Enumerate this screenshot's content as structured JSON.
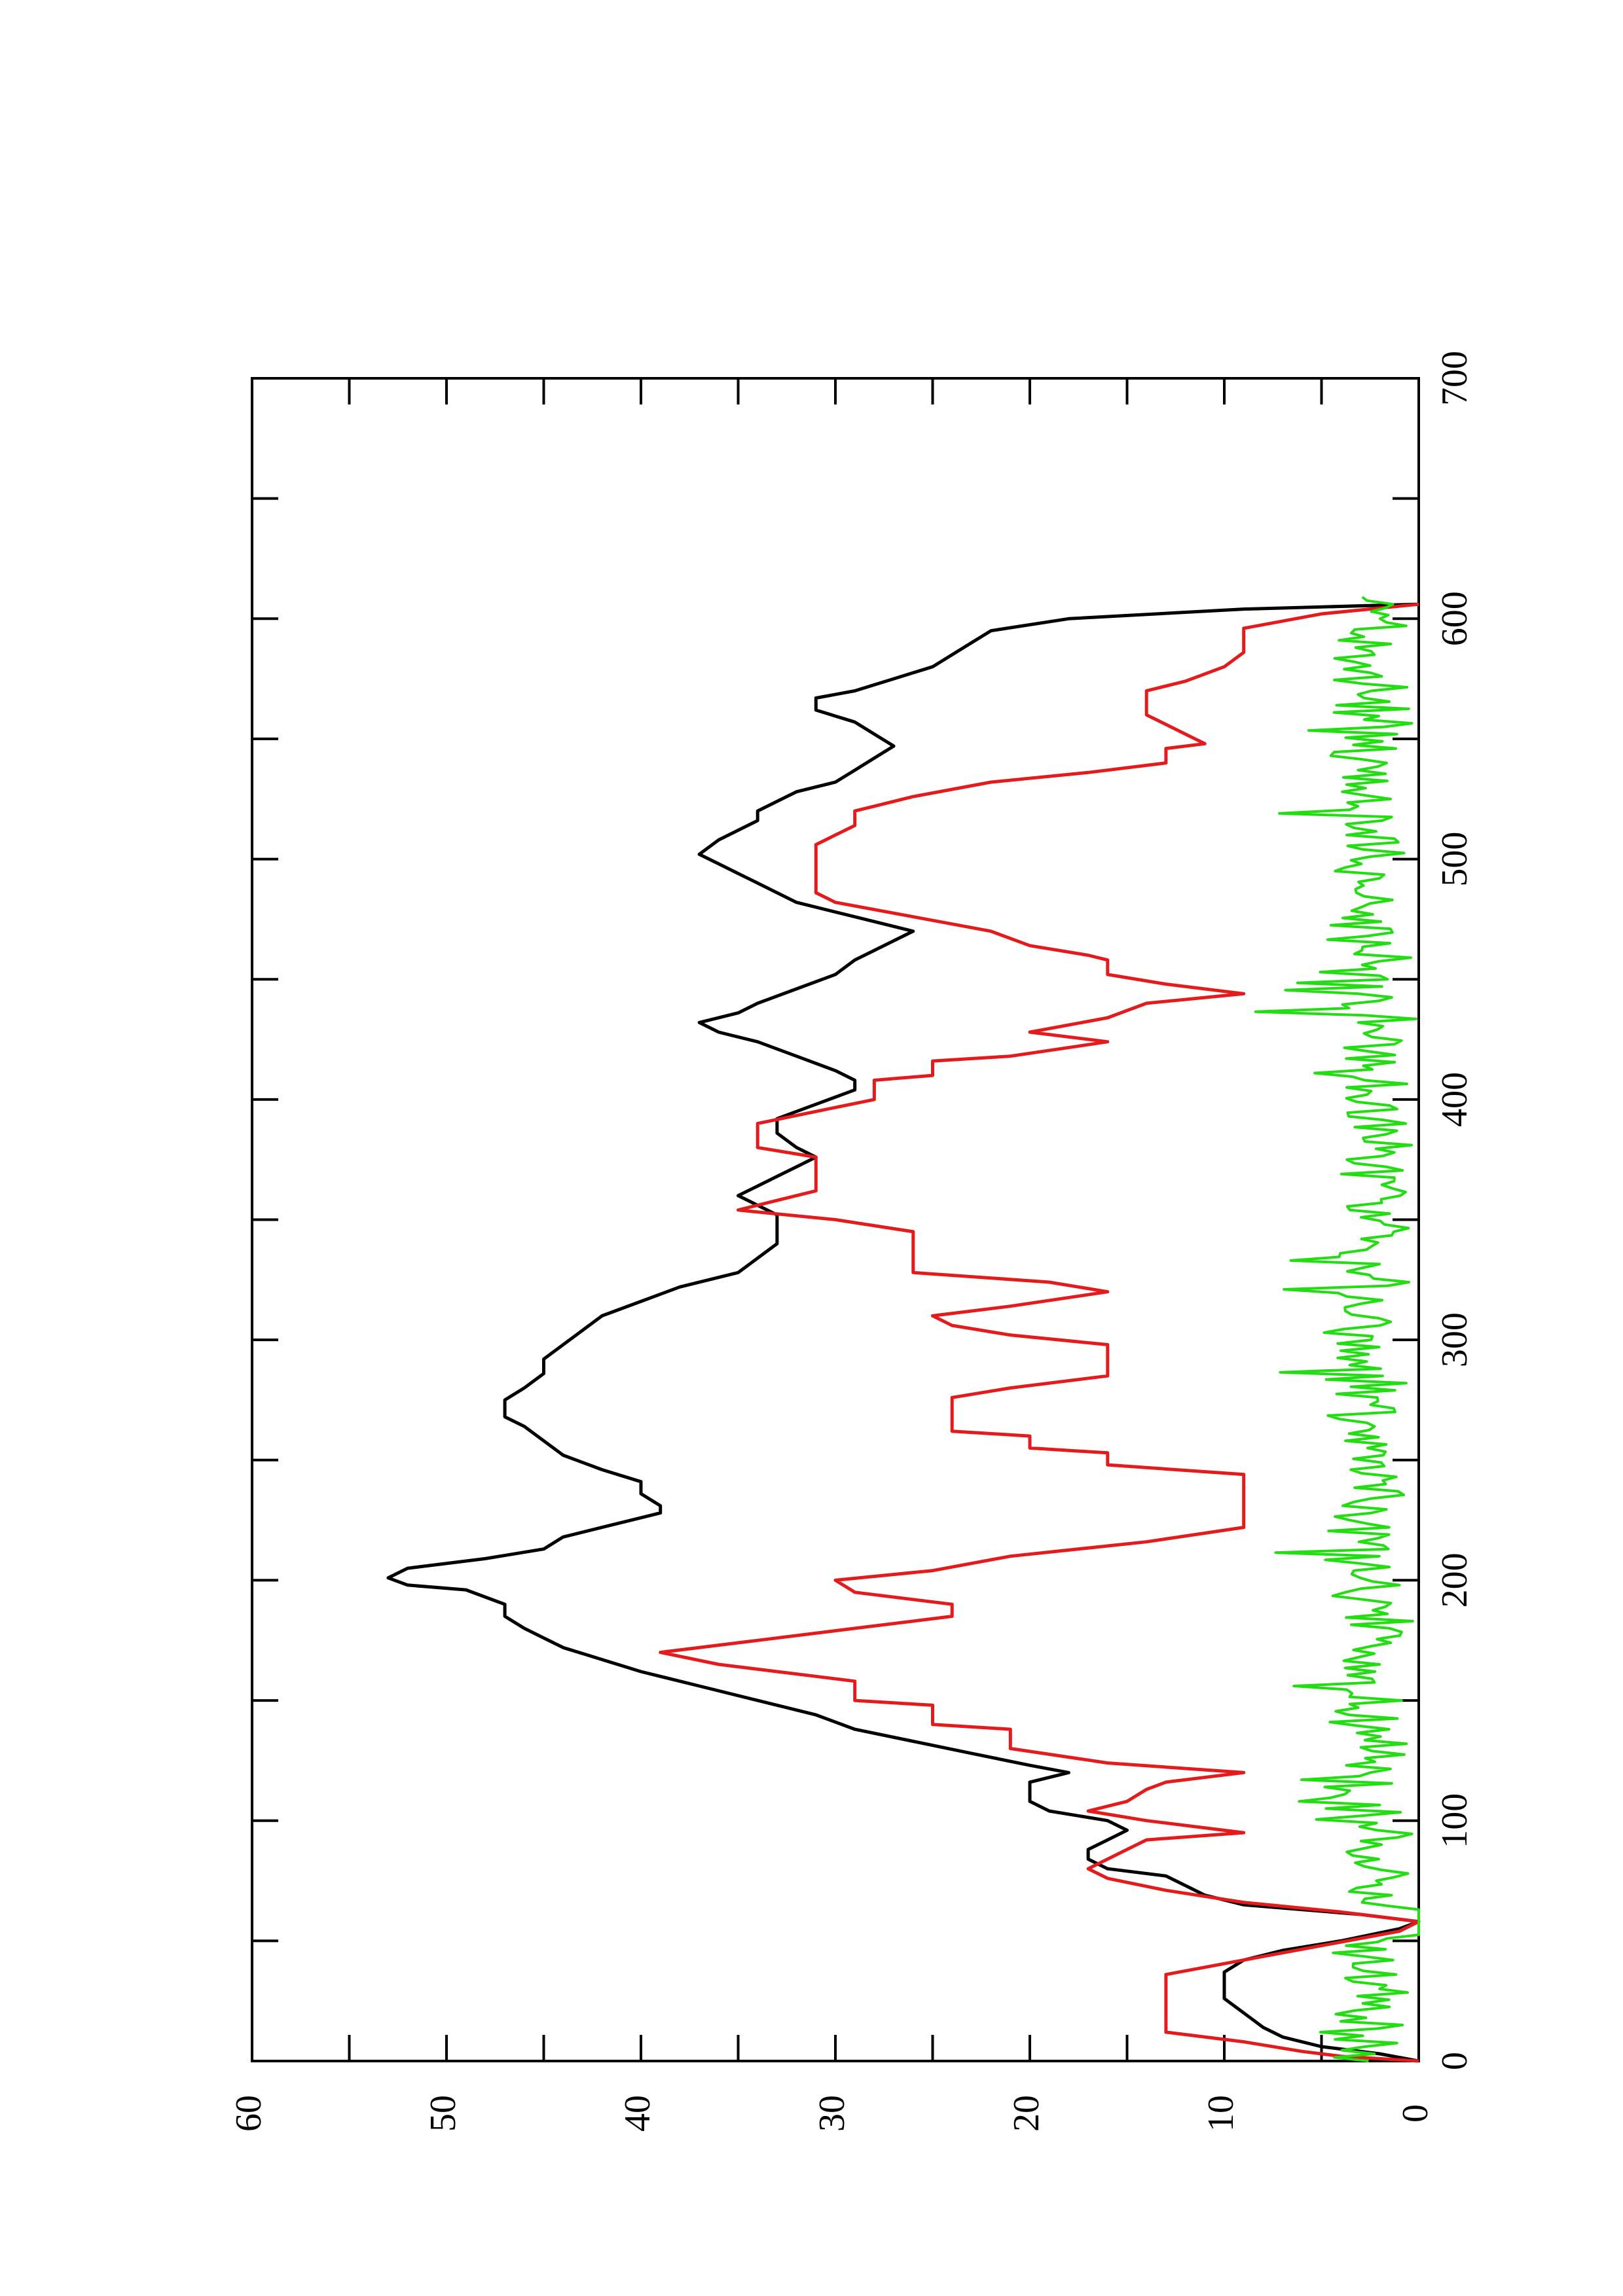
{
  "chart_data": {
    "type": "line",
    "title": "",
    "xlabel": "",
    "ylabel": "",
    "xlim": [
      0,
      700
    ],
    "ylim": [
      0,
      60
    ],
    "x_ticks": [
      0,
      100,
      200,
      300,
      400,
      500,
      600,
      700
    ],
    "y_ticks": [
      0,
      10,
      20,
      30,
      40,
      50,
      60
    ],
    "grid": false,
    "legend": "none",
    "orientation": "rotated 90 degrees counter-clockwise",
    "series": [
      {
        "color": "#000000",
        "style": "line",
        "points": [
          [
            0,
            0
          ],
          [
            3,
            2
          ],
          [
            6,
            5
          ],
          [
            10,
            7
          ],
          [
            14,
            8
          ],
          [
            20,
            9
          ],
          [
            26,
            10
          ],
          [
            32,
            10
          ],
          [
            37,
            10
          ],
          [
            42,
            9
          ],
          [
            46,
            7
          ],
          [
            50,
            4
          ],
          [
            55,
            1
          ],
          [
            58,
            0
          ],
          [
            61,
            3
          ],
          [
            65,
            9
          ],
          [
            69,
            11
          ],
          [
            73,
            12
          ],
          [
            77,
            13
          ],
          [
            80,
            16
          ],
          [
            84,
            17
          ],
          [
            88,
            17
          ],
          [
            92,
            16
          ],
          [
            96,
            15
          ],
          [
            100,
            16
          ],
          [
            104,
            19
          ],
          [
            108,
            20
          ],
          [
            112,
            20
          ],
          [
            116,
            20
          ],
          [
            120,
            18
          ],
          [
            123,
            20
          ],
          [
            128,
            23
          ],
          [
            133,
            26
          ],
          [
            138,
            29
          ],
          [
            144,
            31
          ],
          [
            150,
            34
          ],
          [
            156,
            37
          ],
          [
            162,
            40
          ],
          [
            167,
            42
          ],
          [
            172,
            44
          ],
          [
            176,
            45
          ],
          [
            180,
            46
          ],
          [
            185,
            47
          ],
          [
            190,
            47
          ],
          [
            196,
            49
          ],
          [
            198,
            52
          ],
          [
            201,
            53
          ],
          [
            205,
            52
          ],
          [
            209,
            48
          ],
          [
            213,
            45
          ],
          [
            218,
            44
          ],
          [
            222,
            42
          ],
          [
            226,
            40
          ],
          [
            228,
            39
          ],
          [
            231,
            39
          ],
          [
            236,
            40
          ],
          [
            241,
            40
          ],
          [
            246,
            42
          ],
          [
            252,
            44
          ],
          [
            258,
            45
          ],
          [
            264,
            46
          ],
          [
            268,
            47
          ],
          [
            271,
            47
          ],
          [
            275,
            47
          ],
          [
            280,
            46
          ],
          [
            286,
            45
          ],
          [
            292,
            45
          ],
          [
            298,
            44
          ],
          [
            304,
            43
          ],
          [
            310,
            42
          ],
          [
            316,
            40
          ],
          [
            322,
            38
          ],
          [
            328,
            35
          ],
          [
            334,
            34
          ],
          [
            340,
            33
          ],
          [
            346,
            33
          ],
          [
            352,
            33
          ],
          [
            356,
            34
          ],
          [
            360,
            35
          ],
          [
            364,
            34
          ],
          [
            368,
            33
          ],
          [
            372,
            32
          ],
          [
            376,
            31
          ],
          [
            380,
            32
          ],
          [
            386,
            33
          ],
          [
            392,
            33
          ],
          [
            398,
            31
          ],
          [
            404,
            29
          ],
          [
            408,
            29
          ],
          [
            412,
            30
          ],
          [
            418,
            32
          ],
          [
            424,
            34
          ],
          [
            428,
            36
          ],
          [
            432,
            37
          ],
          [
            436,
            35
          ],
          [
            440,
            34
          ],
          [
            446,
            32
          ],
          [
            452,
            30
          ],
          [
            458,
            29
          ],
          [
            462,
            28
          ],
          [
            466,
            27
          ],
          [
            470,
            26
          ],
          [
            474,
            28
          ],
          [
            478,
            30
          ],
          [
            482,
            32
          ],
          [
            486,
            33
          ],
          [
            490,
            34
          ],
          [
            494,
            35
          ],
          [
            498,
            36
          ],
          [
            502,
            37
          ],
          [
            508,
            36
          ],
          [
            512,
            35
          ],
          [
            516,
            34
          ],
          [
            520,
            34
          ],
          [
            524,
            33
          ],
          [
            528,
            32
          ],
          [
            532,
            30
          ],
          [
            537,
            29
          ],
          [
            542,
            28
          ],
          [
            547,
            27
          ],
          [
            552,
            28
          ],
          [
            557,
            29
          ],
          [
            562,
            31
          ],
          [
            567,
            31
          ],
          [
            570,
            29
          ],
          [
            575,
            27
          ],
          [
            580,
            25
          ],
          [
            585,
            24
          ],
          [
            590,
            23
          ],
          [
            595,
            22
          ],
          [
            600,
            18
          ],
          [
            604,
            9
          ],
          [
            606,
            0
          ]
        ]
      },
      {
        "color": "#e41a1c",
        "style": "step",
        "points": [
          [
            0,
            0
          ],
          [
            2,
            4
          ],
          [
            4,
            6
          ],
          [
            8,
            9
          ],
          [
            12,
            13
          ],
          [
            36,
            13
          ],
          [
            42,
            9
          ],
          [
            48,
            5
          ],
          [
            54,
            1
          ],
          [
            58,
            0
          ],
          [
            62,
            4
          ],
          [
            66,
            9
          ],
          [
            71,
            13
          ],
          [
            76,
            16
          ],
          [
            80,
            17
          ],
          [
            84,
            16
          ],
          [
            88,
            15
          ],
          [
            92,
            14
          ],
          [
            95,
            9
          ],
          [
            100,
            14
          ],
          [
            104,
            17
          ],
          [
            108,
            15
          ],
          [
            113,
            14
          ],
          [
            116,
            13
          ],
          [
            120,
            9
          ],
          [
            124,
            16
          ],
          [
            130,
            21
          ],
          [
            140,
            25
          ],
          [
            150,
            29
          ],
          [
            160,
            31
          ],
          [
            165,
            36
          ],
          [
            170,
            39
          ],
          [
            175,
            34
          ],
          [
            180,
            29
          ],
          [
            185,
            24
          ],
          [
            190,
            24
          ],
          [
            195,
            29
          ],
          [
            200,
            30
          ],
          [
            204,
            25
          ],
          [
            210,
            21
          ],
          [
            216,
            14
          ],
          [
            222,
            9
          ],
          [
            244,
            9
          ],
          [
            248,
            16
          ],
          [
            255,
            20
          ],
          [
            262,
            24
          ],
          [
            276,
            24
          ],
          [
            280,
            21
          ],
          [
            285,
            16
          ],
          [
            298,
            16
          ],
          [
            302,
            21
          ],
          [
            306,
            24
          ],
          [
            310,
            25
          ],
          [
            314,
            21
          ],
          [
            320,
            16
          ],
          [
            324,
            19
          ],
          [
            328,
            26
          ],
          [
            345,
            26
          ],
          [
            350,
            30
          ],
          [
            354,
            35
          ],
          [
            358,
            33
          ],
          [
            362,
            31
          ],
          [
            376,
            31
          ],
          [
            380,
            34
          ],
          [
            390,
            34
          ],
          [
            395,
            31
          ],
          [
            400,
            28
          ],
          [
            410,
            25
          ],
          [
            418,
            21
          ],
          [
            424,
            16
          ],
          [
            428,
            20
          ],
          [
            434,
            16
          ],
          [
            440,
            14
          ],
          [
            444,
            9
          ],
          [
            448,
            13
          ],
          [
            452,
            16
          ],
          [
            460,
            17
          ],
          [
            464,
            20
          ],
          [
            470,
            22
          ],
          [
            476,
            26
          ],
          [
            482,
            30
          ],
          [
            486,
            31
          ],
          [
            506,
            31
          ],
          [
            510,
            30
          ],
          [
            514,
            29
          ],
          [
            522,
            28
          ],
          [
            526,
            26
          ],
          [
            532,
            22
          ],
          [
            536,
            17
          ],
          [
            540,
            13
          ],
          [
            548,
            11
          ],
          [
            552,
            12
          ],
          [
            556,
            13
          ],
          [
            560,
            14
          ],
          [
            570,
            14
          ],
          [
            574,
            12
          ],
          [
            580,
            10
          ],
          [
            586,
            9
          ],
          [
            596,
            9
          ],
          [
            602,
            5
          ],
          [
            606,
            0
          ]
        ]
      },
      {
        "color": "#22dd11",
        "style": "noise",
        "amplitude": [
          0,
          9
        ],
        "x_range": [
          0,
          610
        ]
      }
    ]
  }
}
